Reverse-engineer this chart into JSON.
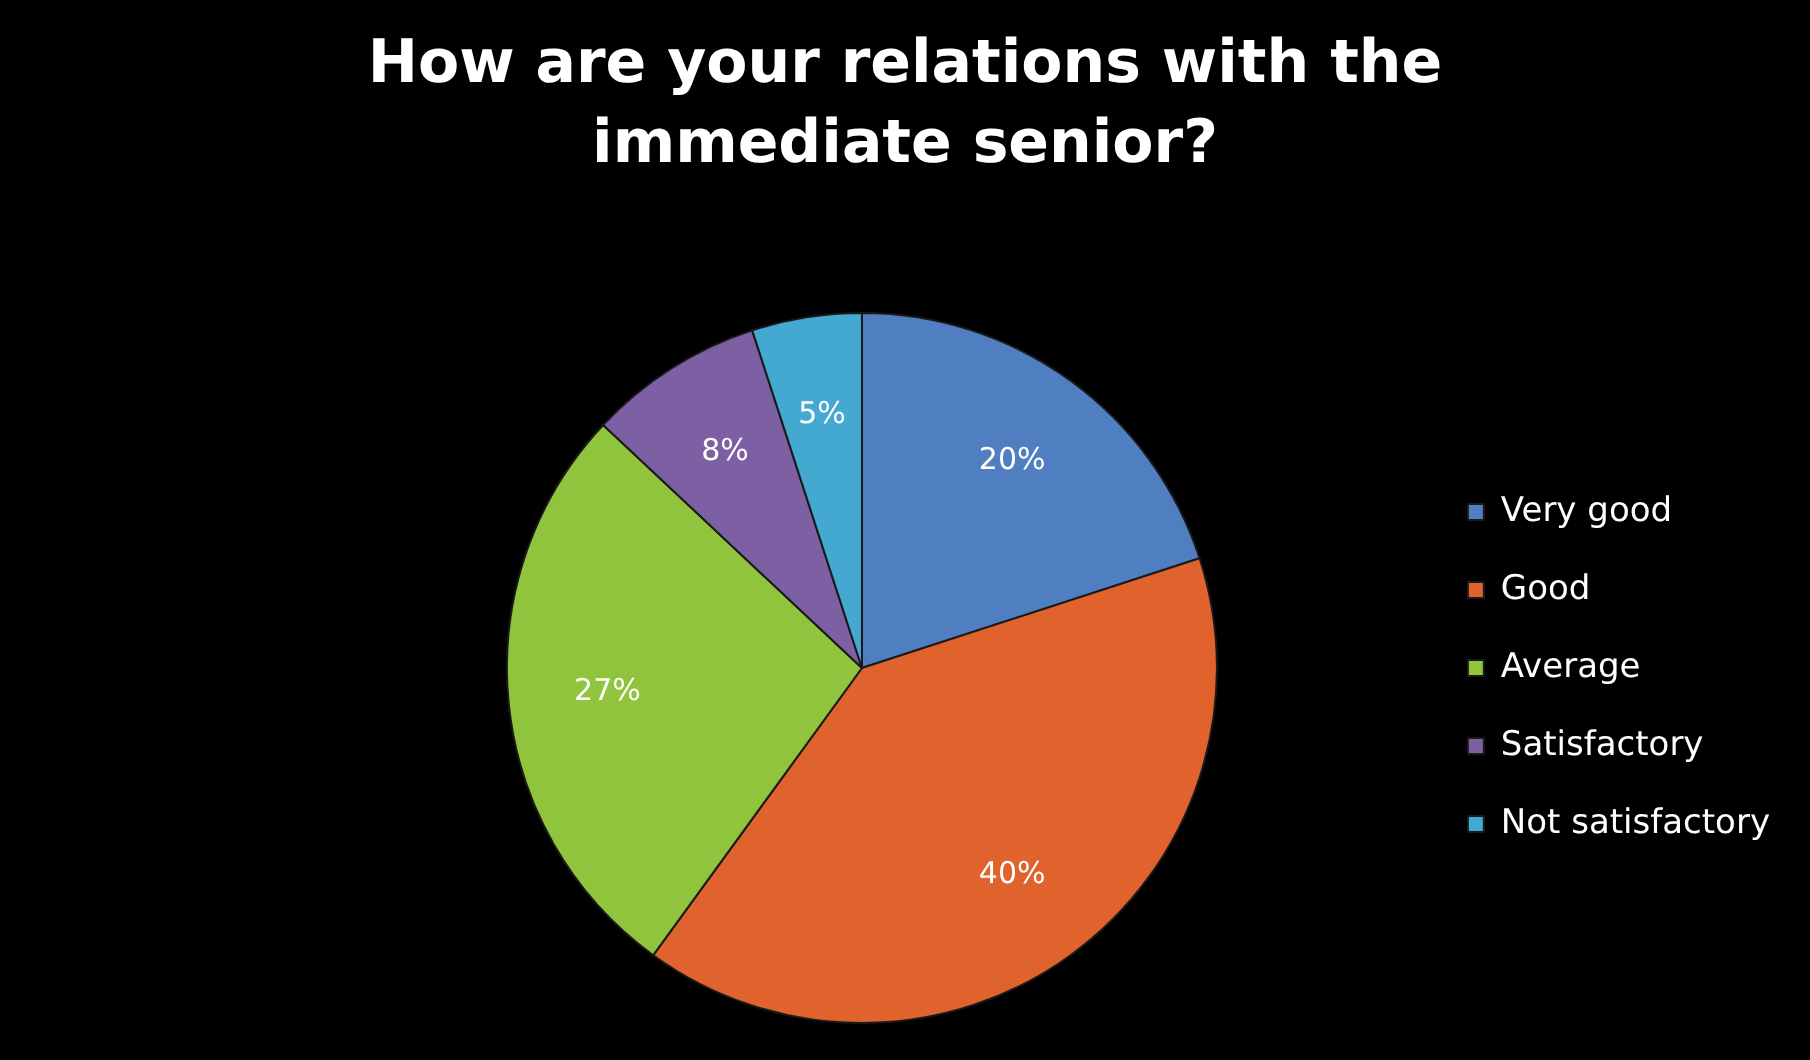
{
  "chart_data": {
    "type": "pie",
    "title": "How are your relations with the immediate senior?",
    "categories": [
      "Very good",
      "Good",
      "Average",
      "Satisfactory",
      "Not satisfactory"
    ],
    "values": [
      20,
      40,
      27,
      8,
      5
    ],
    "value_labels": [
      "20%",
      "40%",
      "27%",
      "8%",
      "5%"
    ],
    "colors": [
      "#4f7fc0",
      "#e0622c",
      "#8fc43c",
      "#7d5fa3",
      "#43a9d0"
    ],
    "legend": "right"
  }
}
